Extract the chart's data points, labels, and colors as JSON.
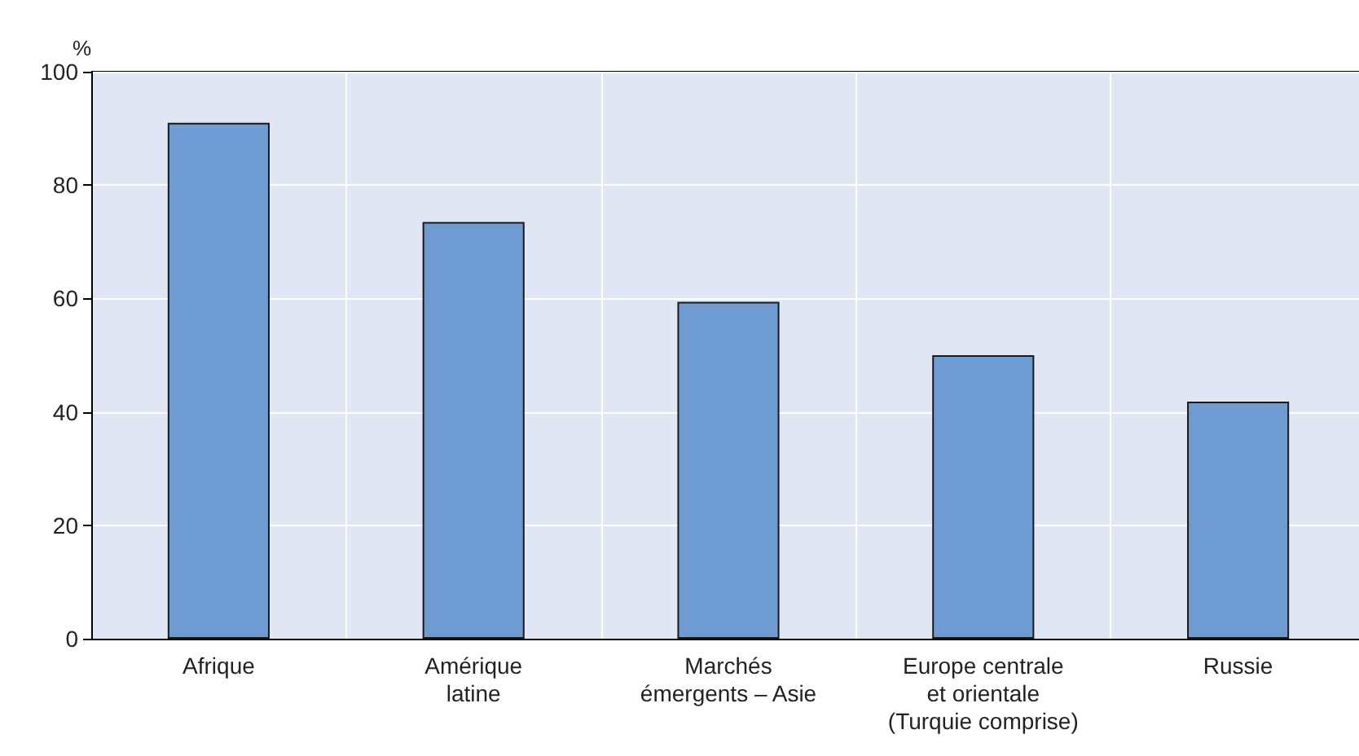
{
  "chart_data": {
    "type": "bar",
    "ylabel": "%",
    "categories": [
      "Afrique",
      "Amérique\nlatine",
      "Marchés\némergents – Asie",
      "Europe centrale\net orientale\n(Turquie comprise)",
      "Russie"
    ],
    "values": [
      91,
      73.5,
      59.4,
      50,
      41.8
    ],
    "color": "#6f9bd3",
    "ylim": [
      0,
      100
    ],
    "yticks": [
      0,
      20,
      40,
      60,
      80,
      100
    ],
    "grid": true
  }
}
